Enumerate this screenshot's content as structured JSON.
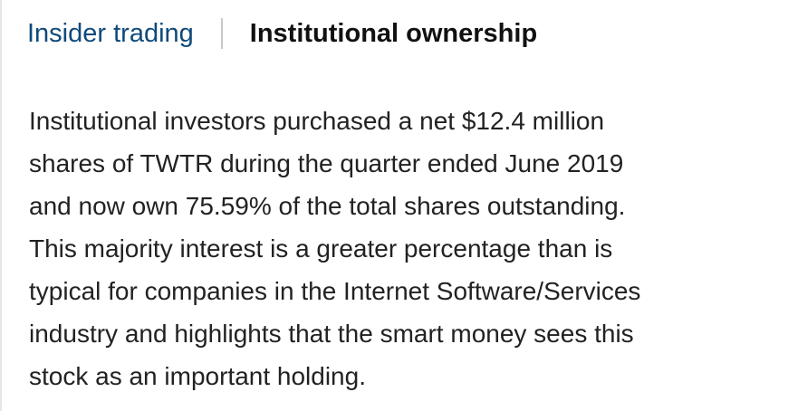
{
  "tabs": {
    "insider_label": "Insider trading",
    "institutional_label": "Institutional ownership"
  },
  "summary": {
    "lines": [
      "Institutional investors purchased a net $12.4 million",
      "shares of TWTR during the quarter ended June 2019",
      "and now own 75.59% of the total shares outstanding.",
      "This majority interest is a greater percentage than is",
      "typical for companies in the Internet Software/Services",
      "industry and highlights that the smart money sees this",
      "stock as an important holding."
    ]
  },
  "colors": {
    "link": "#0f4a7a",
    "active": "#111111",
    "text": "#222222"
  }
}
